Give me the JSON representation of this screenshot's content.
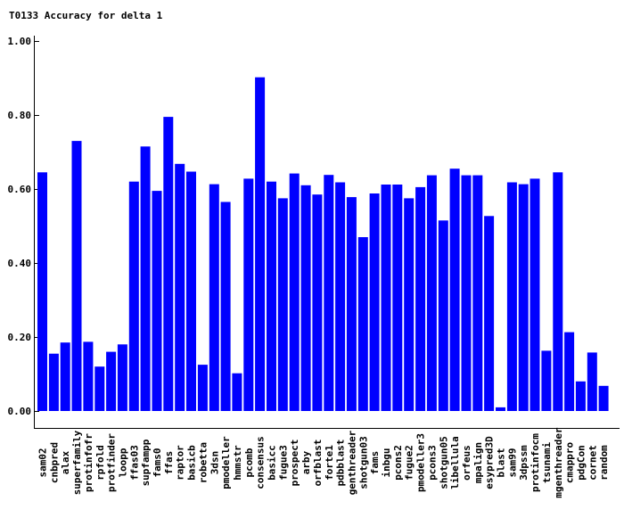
{
  "chart_data": {
    "type": "bar",
    "title": "T0133 Accuracy for delta 1",
    "xlabel": "",
    "ylabel": "",
    "ylim": [
      0,
      1
    ],
    "yticks": [
      "0.00",
      "0.20",
      "0.40",
      "0.60",
      "0.80",
      "1.00"
    ],
    "grid": false,
    "bar_color": "#0000ff",
    "categories": [
      "sam02",
      "cnbpred",
      "alax",
      "superfamily",
      "protinfofr",
      "rpfold",
      "protfinder",
      "loopp",
      "ffas03",
      "supfampp",
      "fams0",
      "ffas",
      "raptor",
      "basicb",
      "robetta",
      "3dsn",
      "pmodeller",
      "hmmstr",
      "pcomb",
      "consensus",
      "basicc",
      "fugue3",
      "prospect",
      "arby",
      "orfblast",
      "forte1",
      "pdbblast",
      "genthreader",
      "shotgun03",
      "fams",
      "inbgu",
      "pcons2",
      "fugue2",
      "pmodeller3",
      "pcons3",
      "shotgun05",
      "libellula",
      "orfeus",
      "mpalign",
      "esypred3D",
      "blast",
      "sam99",
      "3dpssm",
      "protinfocm",
      "tsunami",
      "mgenthreader",
      "cmappro",
      "pdgCon",
      "cornet",
      "random"
    ],
    "values": [
      0.645,
      0.155,
      0.185,
      0.73,
      0.187,
      0.12,
      0.16,
      0.18,
      0.62,
      0.715,
      0.595,
      0.795,
      0.668,
      0.647,
      0.125,
      0.613,
      0.565,
      0.102,
      0.628,
      0.902,
      0.62,
      0.575,
      0.642,
      0.61,
      0.585,
      0.638,
      0.618,
      0.578,
      0.47,
      0.588,
      0.612,
      0.612,
      0.575,
      0.605,
      0.637,
      0.515,
      0.655,
      0.637,
      0.637,
      0.527,
      0.01,
      0.618,
      0.613,
      0.628,
      0.163,
      0.645,
      0.213,
      0.08,
      0.158,
      0.068
    ]
  }
}
